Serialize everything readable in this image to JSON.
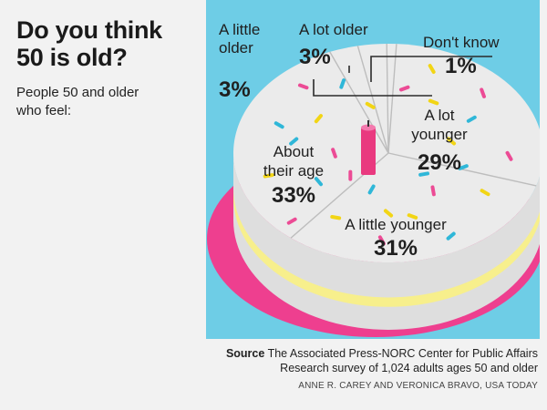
{
  "header": {
    "title_line1": "Do you think",
    "title_line2": "50 is old?",
    "subtitle_line1": "People 50 and older",
    "subtitle_line2": "who feel:"
  },
  "colors": {
    "panel_bg": "#6ecde6",
    "cake_top": "#ebebeb",
    "cake_side": "#dedede",
    "cake_plate": "#ee3f8f",
    "cream_band": "#f7ef8c",
    "candle": "#e9397f",
    "sprinkles": [
      "#f2d515",
      "#ec4b95",
      "#2fb7d8"
    ]
  },
  "chart_data": {
    "type": "pie",
    "title": "Do you think 50 is old?",
    "subtitle": "People 50 and older who feel:",
    "unit": "%",
    "slices": [
      {
        "label": "A lot younger",
        "label_lines": [
          "A lot",
          "younger"
        ],
        "value": 29
      },
      {
        "label": "A little younger",
        "label_lines": [
          "A little younger"
        ],
        "value": 31
      },
      {
        "label": "About their age",
        "label_lines": [
          "About",
          "their age"
        ],
        "value": 33
      },
      {
        "label": "A little older",
        "label_lines": [
          "A little",
          "older"
        ],
        "value": 3
      },
      {
        "label": "A lot older",
        "label_lines": [
          "A lot older"
        ],
        "value": 3
      },
      {
        "label": "Don't know",
        "label_lines": [
          "Don't know"
        ],
        "value": 1
      }
    ]
  },
  "footer": {
    "source_label": "Source",
    "source_line1": " The Associated Press-NORC Center for Public Affairs",
    "source_line2": "Research survey of 1,024 adults ages 50 and older",
    "credit": "ANNE R. CAREY AND VERONICA BRAVO, USA TODAY"
  }
}
